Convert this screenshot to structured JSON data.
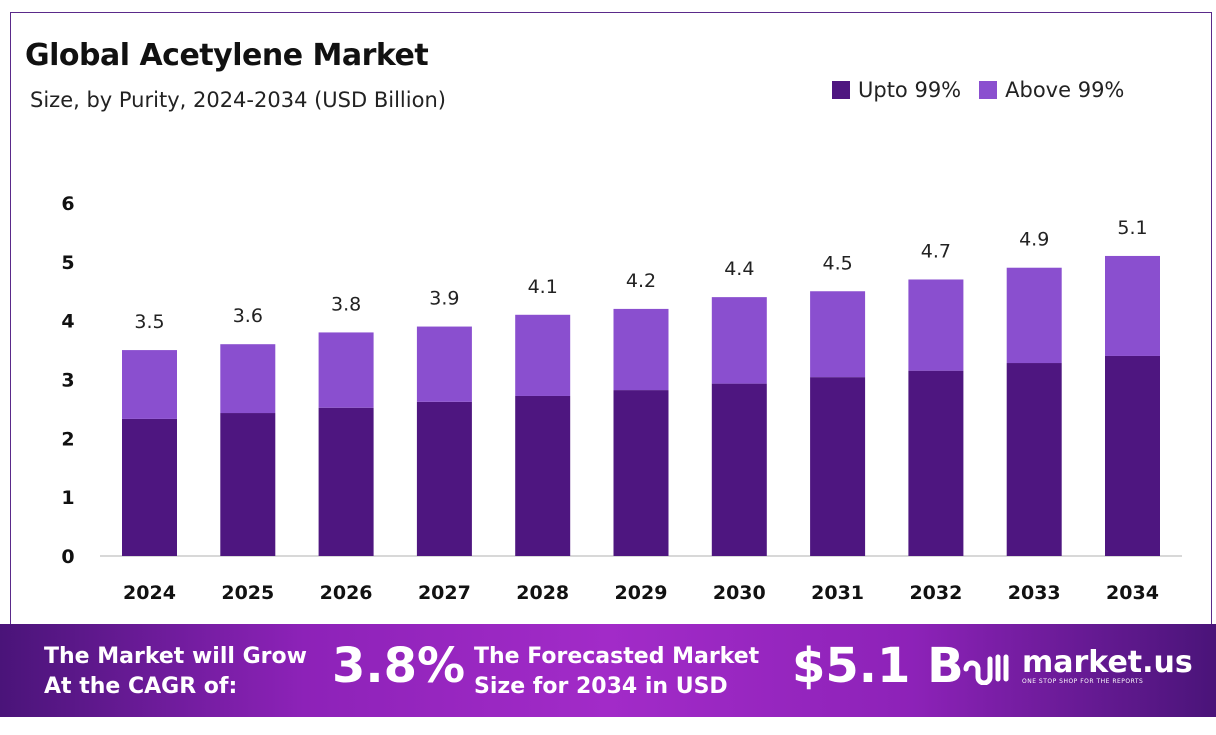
{
  "chart_data": {
    "type": "bar",
    "stacked": true,
    "title": "Global Acetylene Market",
    "subtitle": "Size, by Purity, 2024-2034 (USD Billion)",
    "categories": [
      "2024",
      "2025",
      "2026",
      "2027",
      "2028",
      "2029",
      "2030",
      "2031",
      "2032",
      "2033",
      "2034"
    ],
    "series": [
      {
        "name": "Upto 99%",
        "color": "#4e1680",
        "values": [
          2.33,
          2.43,
          2.52,
          2.62,
          2.72,
          2.82,
          2.93,
          3.04,
          3.15,
          3.28,
          3.4
        ]
      },
      {
        "name": "Above 99%",
        "color": "#8a4fcf",
        "values": [
          1.17,
          1.17,
          1.28,
          1.28,
          1.38,
          1.38,
          1.47,
          1.46,
          1.55,
          1.62,
          1.7
        ]
      }
    ],
    "totals_labels": [
      "3.5",
      "3.6",
      "3.8",
      "3.9",
      "4.1",
      "4.2",
      "4.4",
      "4.5",
      "4.7",
      "4.9",
      "5.1"
    ],
    "totals": [
      3.5,
      3.6,
      3.8,
      3.9,
      4.1,
      4.2,
      4.4,
      4.5,
      4.7,
      4.9,
      5.1
    ],
    "yticks": [
      "0",
      "1",
      "2",
      "3",
      "4",
      "5",
      "6"
    ],
    "ylim": [
      0,
      6
    ],
    "grid": false,
    "legend": "top-right",
    "xlabel": "",
    "ylabel": ""
  },
  "banner": {
    "cagr_text_1": "The Market will Grow",
    "cagr_text_2": "At the CAGR of:",
    "cagr_value": "3.8%",
    "forecast_text_1": "The Forecasted Market",
    "forecast_text_2": "Size for 2034 in USD",
    "forecast_value": "$5.1 B",
    "logo_name": "market.us",
    "logo_tagline": "ONE STOP SHOP FOR THE REPORTS"
  }
}
